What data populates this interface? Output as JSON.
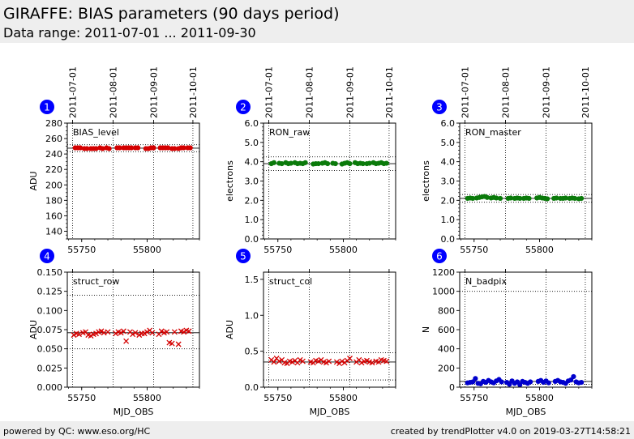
{
  "header": {
    "title": "GIRAFFE: BIAS parameters (90 days period)",
    "subtitle": "Data range: 2011-07-01 ... 2011-09-30"
  },
  "footer": {
    "left": "powered by QC: www.eso.org/HC",
    "right": "created by trendPlotter v4.0 on 2019-03-27T14:58:21"
  },
  "chart_data": [
    {
      "type": "scatter",
      "number": "1",
      "label": "BIAS_level",
      "xlabel": "",
      "ylabel": "ADU",
      "xlim": [
        55739,
        55840
      ],
      "ylim": [
        130,
        280
      ],
      "yticks": [
        140,
        160,
        180,
        200,
        220,
        240,
        260,
        280
      ],
      "ytick_labels": [
        "140",
        "160",
        "180",
        "200",
        "220",
        "240",
        "260",
        "280"
      ],
      "y_minor_step": 5,
      "xticks": [
        55750,
        55800
      ],
      "xtick_labels": [
        "55750",
        "55800"
      ],
      "date_ticks": [
        55743,
        55774,
        55805,
        55835
      ],
      "date_labels": [
        "2011-07-01",
        "2011-08-01",
        "2011-09-01",
        "2011-10-01"
      ],
      "hlines": [
        {
          "y": 247.5,
          "style": "solid"
        },
        {
          "y": 252,
          "style": "dotted"
        },
        {
          "y": 243,
          "style": "dotted"
        }
      ],
      "color": "#d40000",
      "marker": "dot",
      "x": [
        55745,
        55747,
        55749,
        55752,
        55754,
        55757,
        55759,
        55761,
        55764,
        55766,
        55769,
        55771,
        55777,
        55779,
        55782,
        55784,
        55786,
        55788,
        55791,
        55793,
        55799,
        55801,
        55803,
        55805,
        55810,
        55812,
        55814,
        55816,
        55819,
        55821,
        55824,
        55826,
        55828,
        55831,
        55833
      ],
      "y": [
        248,
        248,
        248,
        247,
        247,
        247,
        247,
        247,
        248,
        247,
        248,
        247,
        248,
        248,
        248,
        248,
        248,
        248,
        248,
        248,
        247,
        247,
        248,
        248,
        248,
        248,
        248,
        248,
        247,
        247,
        247,
        248,
        248,
        248,
        248
      ]
    },
    {
      "type": "scatter",
      "number": "2",
      "label": "RON_raw",
      "xlabel": "",
      "ylabel": "electrons",
      "xlim": [
        55739,
        55840
      ],
      "ylim": [
        0,
        6
      ],
      "yticks": [
        0,
        1,
        2,
        3,
        4,
        5,
        6
      ],
      "ytick_labels": [
        "0.0",
        "1.0",
        "2.0",
        "3.0",
        "4.0",
        "5.0",
        "6.0"
      ],
      "y_minor_step": 0.2,
      "xticks": [
        55750,
        55800
      ],
      "xtick_labels": [
        "55750",
        "55800"
      ],
      "date_ticks": [
        55743,
        55774,
        55805,
        55835
      ],
      "date_labels": [
        "2011-07-01",
        "2011-08-01",
        "2011-09-01",
        "2011-10-01"
      ],
      "hlines": [
        {
          "y": 3.9,
          "style": "solid"
        },
        {
          "y": 4.25,
          "style": "dotted"
        },
        {
          "y": 3.55,
          "style": "dotted"
        }
      ],
      "color": "#0a7a0a",
      "marker": "dot",
      "x": [
        55745,
        55747,
        55751,
        55753,
        55756,
        55758,
        55760,
        55763,
        55765,
        55767,
        55769,
        55771,
        55777,
        55779,
        55781,
        55784,
        55786,
        55788,
        55792,
        55794,
        55799,
        55801,
        55803,
        55805,
        55809,
        55811,
        55813,
        55815,
        55818,
        55820,
        55823,
        55825,
        55827,
        55829,
        55831,
        55833
      ],
      "y": [
        3.9,
        3.95,
        3.92,
        3.9,
        3.95,
        3.9,
        3.92,
        3.95,
        3.9,
        3.92,
        3.9,
        3.95,
        3.88,
        3.9,
        3.9,
        3.92,
        3.95,
        3.9,
        3.92,
        3.9,
        3.88,
        3.92,
        3.95,
        3.9,
        3.95,
        3.9,
        3.92,
        3.9,
        3.9,
        3.92,
        3.95,
        3.9,
        3.92,
        3.95,
        3.9,
        3.92
      ]
    },
    {
      "type": "scatter",
      "number": "3",
      "label": "RON_master",
      "xlabel": "",
      "ylabel": "electrons",
      "xlim": [
        55739,
        55840
      ],
      "ylim": [
        0,
        6
      ],
      "yticks": [
        0,
        1,
        2,
        3,
        4,
        5,
        6
      ],
      "ytick_labels": [
        "0.0",
        "1.0",
        "2.0",
        "3.0",
        "4.0",
        "5.0",
        "6.0"
      ],
      "y_minor_step": 0.2,
      "xticks": [
        55750,
        55800
      ],
      "xtick_labels": [
        "55750",
        "55800"
      ],
      "date_ticks": [
        55743,
        55774,
        55805,
        55835
      ],
      "date_labels": [
        "2011-07-01",
        "2011-08-01",
        "2011-09-01",
        "2011-10-01"
      ],
      "hlines": [
        {
          "y": 2.1,
          "style": "solid"
        },
        {
          "y": 2.3,
          "style": "dotted"
        },
        {
          "y": 1.9,
          "style": "dotted"
        }
      ],
      "color": "#0a7a0a",
      "marker": "dot",
      "x": [
        55745,
        55747,
        55749,
        55752,
        55754,
        55756,
        55758,
        55760,
        55763,
        55765,
        55767,
        55770,
        55776,
        55778,
        55781,
        55783,
        55785,
        55788,
        55790,
        55792,
        55798,
        55800,
        55802,
        55804,
        55806,
        55811,
        55813,
        55816,
        55818,
        55820,
        55823,
        55825,
        55827,
        55830,
        55832
      ],
      "y": [
        2.1,
        2.12,
        2.1,
        2.12,
        2.15,
        2.18,
        2.2,
        2.15,
        2.12,
        2.15,
        2.12,
        2.1,
        2.1,
        2.12,
        2.1,
        2.12,
        2.1,
        2.1,
        2.12,
        2.1,
        2.12,
        2.15,
        2.12,
        2.1,
        2.08,
        2.1,
        2.12,
        2.1,
        2.1,
        2.12,
        2.1,
        2.12,
        2.1,
        2.08,
        2.1
      ]
    },
    {
      "type": "scatter",
      "number": "4",
      "label": "struct_row",
      "xlabel": "MJD_OBS",
      "ylabel": "ADU",
      "xlim": [
        55739,
        55840
      ],
      "ylim": [
        0,
        0.15
      ],
      "yticks": [
        0,
        0.025,
        0.05,
        0.075,
        0.1,
        0.125,
        0.15
      ],
      "ytick_labels": [
        "0.000",
        "0.025",
        "0.050",
        "0.075",
        "0.100",
        "0.125",
        "0.150"
      ],
      "y_minor_step": 0,
      "xticks": [
        55750,
        55800
      ],
      "xtick_labels": [
        "55750",
        "55800"
      ],
      "date_ticks": [
        55743,
        55774,
        55805,
        55835
      ],
      "date_labels": [],
      "hlines": [
        {
          "y": 0.071,
          "style": "solid"
        },
        {
          "y": 0.12,
          "style": "dotted"
        },
        {
          "y": 0.05,
          "style": "dotted"
        }
      ],
      "color": "#d40000",
      "marker": "x",
      "x": [
        55744,
        55746,
        55748,
        55751,
        55753,
        55755,
        55757,
        55759,
        55761,
        55763,
        55765,
        55767,
        55770,
        55776,
        55778,
        55780,
        55782,
        55784,
        55787,
        55789,
        55791,
        55794,
        55796,
        55798,
        55800,
        55802,
        55804,
        55809,
        55811,
        55813,
        55815,
        55817,
        55819,
        55821,
        55824,
        55826,
        55828,
        55830,
        55832
      ],
      "y": [
        0.068,
        0.07,
        0.069,
        0.071,
        0.072,
        0.068,
        0.067,
        0.069,
        0.07,
        0.072,
        0.073,
        0.071,
        0.072,
        0.07,
        0.072,
        0.071,
        0.073,
        0.06,
        0.072,
        0.069,
        0.071,
        0.068,
        0.07,
        0.07,
        0.072,
        0.074,
        0.071,
        0.069,
        0.073,
        0.071,
        0.072,
        0.058,
        0.057,
        0.072,
        0.056,
        0.073,
        0.072,
        0.074,
        0.073
      ]
    },
    {
      "type": "scatter",
      "number": "5",
      "label": "struct_col",
      "xlabel": "MJD_OBS",
      "ylabel": "ADU",
      "xlim": [
        55739,
        55840
      ],
      "ylim": [
        0,
        1.6
      ],
      "yticks": [
        0,
        0.5,
        1,
        1.5
      ],
      "ytick_labels": [
        "0.0",
        "0.5",
        "1.0",
        "1.5"
      ],
      "y_minor_step": 0,
      "xticks": [
        55750,
        55800
      ],
      "xtick_labels": [
        "55750",
        "55800"
      ],
      "date_ticks": [
        55743,
        55774,
        55805,
        55835
      ],
      "date_labels": [],
      "hlines": [
        {
          "y": 0.35,
          "style": "solid"
        },
        {
          "y": 0.48,
          "style": "dotted"
        },
        {
          "y": 0.1,
          "style": "dotted"
        }
      ],
      "color": "#d40000",
      "marker": "x",
      "x": [
        55745,
        55747,
        55749,
        55751,
        55753,
        55755,
        55757,
        55759,
        55761,
        55763,
        55765,
        55767,
        55769,
        55775,
        55777,
        55779,
        55781,
        55783,
        55785,
        55787,
        55789,
        55795,
        55797,
        55799,
        55801,
        55803,
        55805,
        55810,
        55812,
        55814,
        55816,
        55818,
        55820,
        55822,
        55825,
        55827,
        55829,
        55831,
        55833
      ],
      "y": [
        0.38,
        0.35,
        0.4,
        0.36,
        0.38,
        0.34,
        0.33,
        0.36,
        0.35,
        0.37,
        0.34,
        0.38,
        0.36,
        0.35,
        0.34,
        0.37,
        0.36,
        0.38,
        0.35,
        0.34,
        0.36,
        0.35,
        0.33,
        0.36,
        0.34,
        0.37,
        0.4,
        0.35,
        0.38,
        0.34,
        0.36,
        0.37,
        0.35,
        0.34,
        0.36,
        0.35,
        0.38,
        0.37,
        0.36
      ]
    },
    {
      "type": "scatter",
      "number": "6",
      "label": "N_badpix",
      "xlabel": "MJD_OBS",
      "ylabel": "N",
      "xlim": [
        55739,
        55840
      ],
      "ylim": [
        0,
        1200
      ],
      "yticks": [
        0,
        200,
        400,
        600,
        800,
        1000,
        1200
      ],
      "ytick_labels": [
        "0",
        "200",
        "400",
        "600",
        "800",
        "1000",
        "1200"
      ],
      "y_minor_step": 0,
      "xticks": [
        55750,
        55800
      ],
      "xtick_labels": [
        "55750",
        "55800"
      ],
      "date_ticks": [
        55743,
        55774,
        55805,
        55835
      ],
      "date_labels": [],
      "hlines": [
        {
          "y": 60,
          "style": "solid"
        },
        {
          "y": 1000,
          "style": "dotted"
        },
        {
          "y": 30,
          "style": "dotted"
        }
      ],
      "color": "#0000cc",
      "marker": "dot",
      "x": [
        55745,
        55747,
        55749,
        55751,
        55753,
        55755,
        55757,
        55759,
        55761,
        55763,
        55765,
        55767,
        55769,
        55771,
        55775,
        55777,
        55779,
        55781,
        55783,
        55785,
        55787,
        55789,
        55791,
        55793,
        55799,
        55801,
        55803,
        55805,
        55807,
        55812,
        55814,
        55816,
        55818,
        55820,
        55822,
        55824,
        55826,
        55828,
        55830,
        55832
      ],
      "y": [
        45,
        50,
        55,
        90,
        40,
        35,
        60,
        50,
        70,
        55,
        45,
        65,
        80,
        55,
        50,
        30,
        65,
        40,
        55,
        25,
        60,
        50,
        40,
        55,
        60,
        70,
        50,
        65,
        45,
        60,
        70,
        55,
        50,
        40,
        65,
        75,
        110,
        55,
        45,
        50
      ]
    }
  ]
}
